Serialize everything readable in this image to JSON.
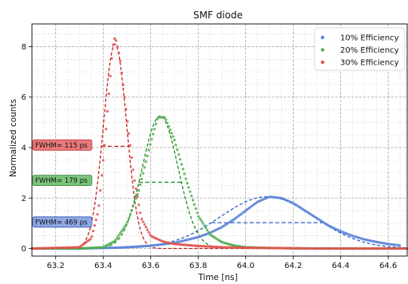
{
  "chart_data": {
    "type": "scatter",
    "title": "SMF diode",
    "xlabel": "Time [ns]",
    "ylabel": "Normalized counts",
    "xlim": [
      63.1,
      64.68
    ],
    "ylim": [
      -0.3,
      8.9
    ],
    "xticks": [
      "63.2",
      "63.4",
      "63.6",
      "63.8",
      "64.0",
      "64.2",
      "64.4",
      "64.6"
    ],
    "yticks": [
      "0",
      "2",
      "4",
      "6",
      "8"
    ],
    "grid": true,
    "minor_grid": true,
    "legend_position": "top-right",
    "series": [
      {
        "name": "10% Efficiency",
        "color": "#5b84d8",
        "fit_color": "#2f62c5",
        "peak_x": 64.09,
        "peak_y": 2.05,
        "fwhm_ps": 469,
        "points": [
          [
            63.1,
            0.0
          ],
          [
            63.2,
            0.0
          ],
          [
            63.3,
            0.0
          ],
          [
            63.4,
            0.02
          ],
          [
            63.5,
            0.05
          ],
          [
            63.6,
            0.11
          ],
          [
            63.7,
            0.22
          ],
          [
            63.8,
            0.45
          ],
          [
            63.85,
            0.62
          ],
          [
            63.9,
            0.85
          ],
          [
            63.95,
            1.15
          ],
          [
            64.0,
            1.5
          ],
          [
            64.05,
            1.85
          ],
          [
            64.1,
            2.05
          ],
          [
            64.15,
            2.0
          ],
          [
            64.2,
            1.8
          ],
          [
            64.25,
            1.5
          ],
          [
            64.3,
            1.2
          ],
          [
            64.35,
            0.9
          ],
          [
            64.4,
            0.68
          ],
          [
            64.45,
            0.5
          ],
          [
            64.5,
            0.36
          ],
          [
            64.55,
            0.26
          ],
          [
            64.6,
            0.18
          ],
          [
            64.65,
            0.12
          ]
        ]
      },
      {
        "name": "20% Efficiency",
        "color": "#4fae4f",
        "fit_color": "#1f8a1f",
        "peak_x": 63.64,
        "peak_y": 5.25,
        "fwhm_ps": 179,
        "points": [
          [
            63.1,
            0.0
          ],
          [
            63.3,
            0.0
          ],
          [
            63.4,
            0.05
          ],
          [
            63.45,
            0.3
          ],
          [
            63.5,
            1.0
          ],
          [
            63.55,
            2.3
          ],
          [
            63.6,
            4.2
          ],
          [
            63.63,
            5.2
          ],
          [
            63.66,
            5.2
          ],
          [
            63.7,
            4.3
          ],
          [
            63.75,
            2.7
          ],
          [
            63.8,
            1.3
          ],
          [
            63.85,
            0.55
          ],
          [
            63.9,
            0.25
          ],
          [
            63.95,
            0.12
          ],
          [
            64.0,
            0.05
          ],
          [
            64.1,
            0.02
          ],
          [
            64.3,
            0.0
          ],
          [
            64.65,
            0.0
          ]
        ]
      },
      {
        "name": "30% Efficiency",
        "color": "#e0534f",
        "fit_color": "#c81e1e",
        "peak_x": 63.45,
        "peak_y": 8.1,
        "fwhm_ps": 115,
        "points": [
          [
            63.1,
            0.0
          ],
          [
            63.3,
            0.05
          ],
          [
            63.35,
            0.4
          ],
          [
            63.38,
            1.5
          ],
          [
            63.41,
            4.5
          ],
          [
            63.44,
            8.0
          ],
          [
            63.45,
            8.4
          ],
          [
            63.47,
            7.6
          ],
          [
            63.5,
            5.2
          ],
          [
            63.53,
            2.8
          ],
          [
            63.56,
            1.2
          ],
          [
            63.6,
            0.5
          ],
          [
            63.65,
            0.28
          ],
          [
            63.7,
            0.18
          ],
          [
            63.8,
            0.1
          ],
          [
            63.9,
            0.05
          ],
          [
            64.0,
            0.03
          ],
          [
            64.3,
            0.0
          ],
          [
            64.65,
            0.0
          ]
        ]
      }
    ]
  },
  "annotations": [
    {
      "text": "FWHM= 115 ps",
      "series": "30% Efficiency",
      "value_y": 4.1,
      "bg": "#e87a7a",
      "border": "#c03030"
    },
    {
      "text": "FWHM= 179 ps",
      "series": "20% Efficiency",
      "value_y": 2.7,
      "bg": "#7cc47c",
      "border": "#2f7f2f"
    },
    {
      "text": "FWHM= 469 ps",
      "series": "10% Efficiency",
      "value_y": 1.05,
      "bg": "#8fa8e6",
      "border": "#3357b0"
    }
  ]
}
